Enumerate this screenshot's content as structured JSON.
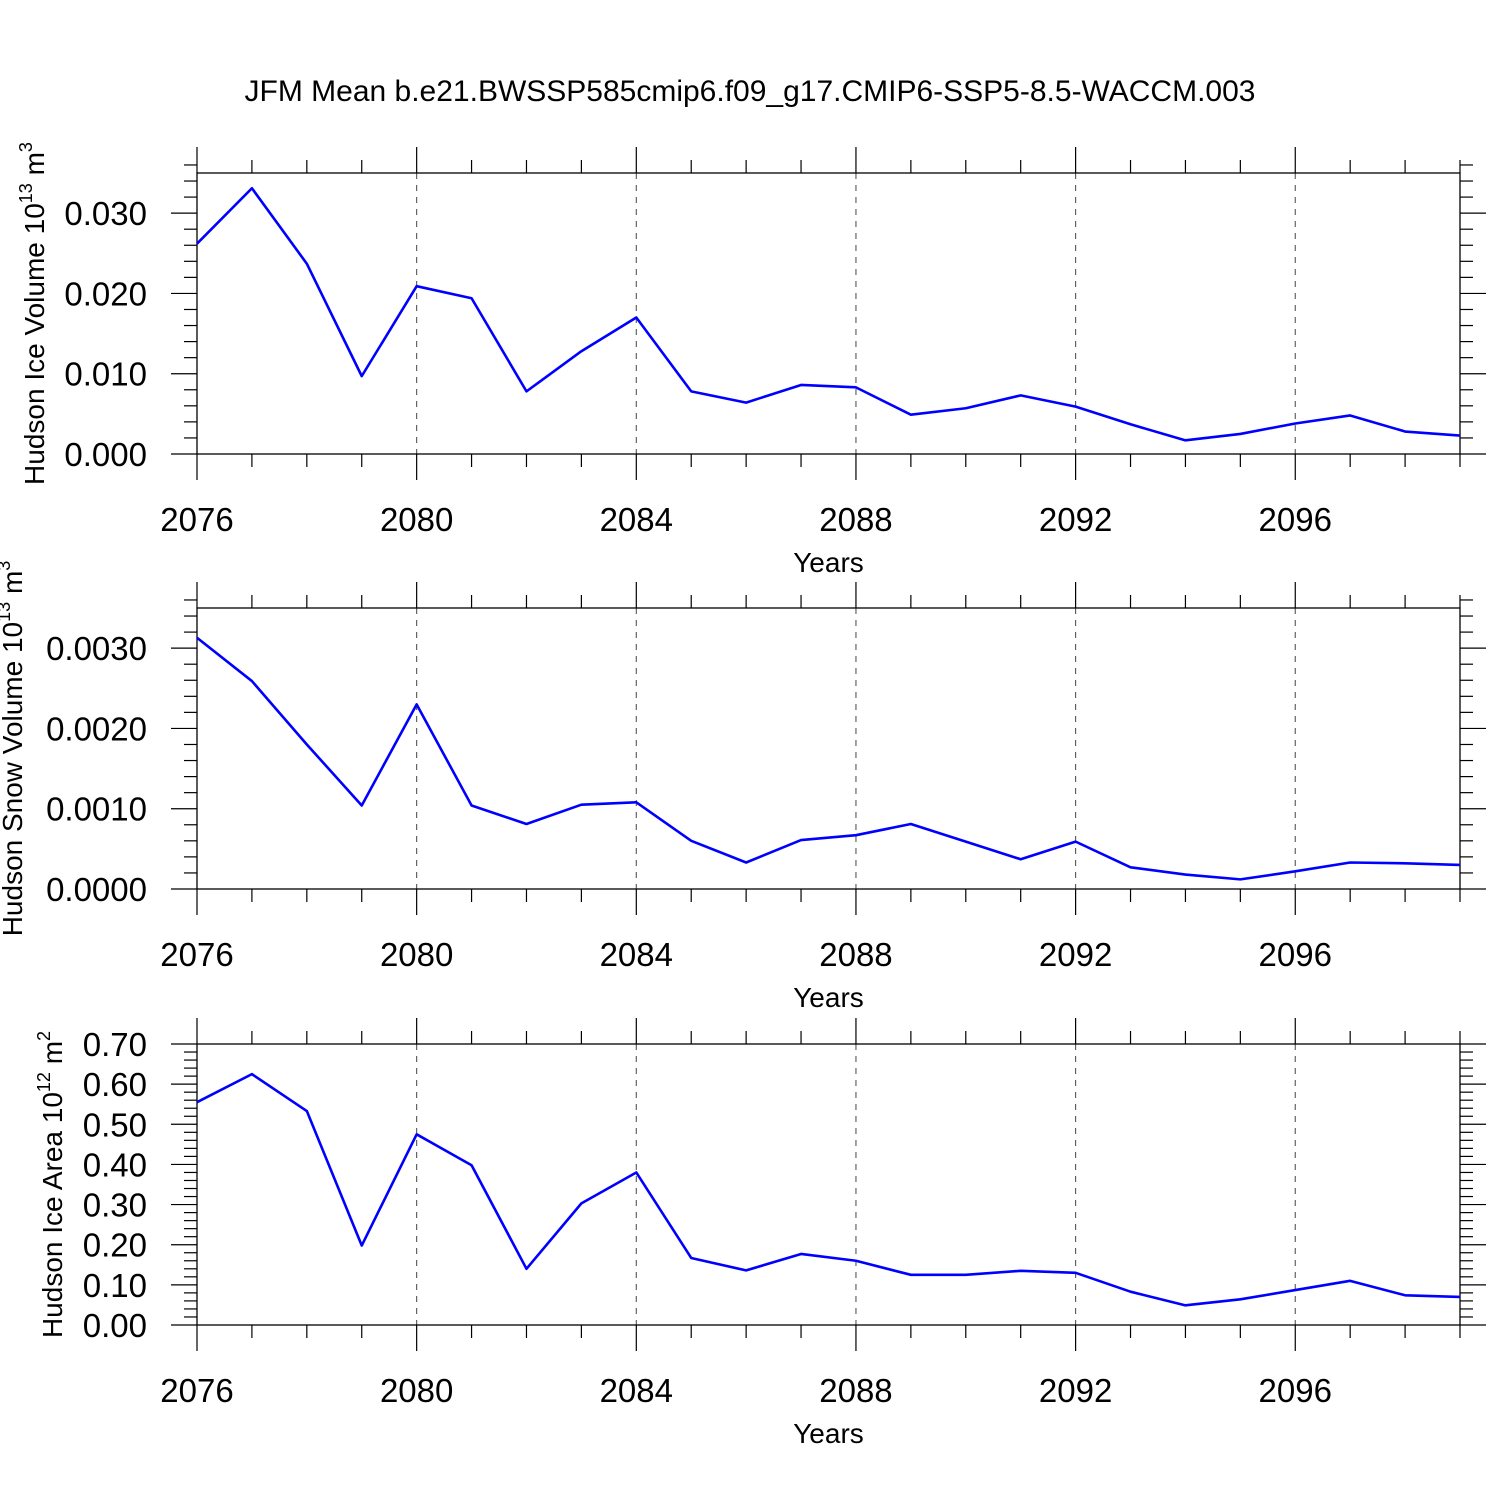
{
  "figure": {
    "title": "JFM Mean b.e21.BWSSP585cmip6.f09_g17.CMIP6-SSP5-8.5-WACCM.003"
  },
  "colors": {
    "line": "#0000ff",
    "frame": "#000000",
    "grid": "#555555"
  },
  "chart_data": [
    {
      "type": "line",
      "xlabel": "Years",
      "ylabel": "Hudson Ice Volume 10",
      "ylabel_exp": "13",
      "ylabel_unit": " m",
      "ylabel_unit_exp": "3",
      "xlim": [
        2076,
        2099
      ],
      "ylim": [
        0,
        0.035
      ],
      "x_ticks": [
        2076,
        2080,
        2084,
        2088,
        2092,
        2096
      ],
      "x_tick_labels": [
        "2076",
        "2080",
        "2084",
        "2088",
        "2092",
        "2096"
      ],
      "x_minor_step": 1,
      "y_ticks": [
        0,
        0.01,
        0.02,
        0.03
      ],
      "y_tick_labels": [
        "0.000",
        "0.010",
        "0.020",
        "0.030"
      ],
      "y_minor_step": 0.002,
      "grid": "vertical dashed at major x ticks",
      "x": [
        2076,
        2077,
        2078,
        2079,
        2080,
        2081,
        2082,
        2083,
        2084,
        2085,
        2086,
        2087,
        2088,
        2089,
        2090,
        2091,
        2092,
        2093,
        2094,
        2095,
        2096,
        2097,
        2098,
        2099
      ],
      "series": [
        {
          "values": [
            0.0262,
            0.0331,
            0.0237,
            0.0097,
            0.0209,
            0.0194,
            0.0078,
            0.0128,
            0.017,
            0.0078,
            0.0064,
            0.0086,
            0.0083,
            0.0049,
            0.0057,
            0.0073,
            0.0059,
            0.0037,
            0.0017,
            0.0025,
            0.0038,
            0.0048,
            0.0028,
            0.0023
          ]
        }
      ]
    },
    {
      "type": "line",
      "xlabel": "Years",
      "ylabel": "Hudson Snow Volume 10",
      "ylabel_exp": "13",
      "ylabel_unit": " m",
      "ylabel_unit_exp": "3",
      "xlim": [
        2076,
        2099
      ],
      "ylim": [
        0,
        0.0035
      ],
      "x_ticks": [
        2076,
        2080,
        2084,
        2088,
        2092,
        2096
      ],
      "x_tick_labels": [
        "2076",
        "2080",
        "2084",
        "2088",
        "2092",
        "2096"
      ],
      "x_minor_step": 1,
      "y_ticks": [
        0,
        0.001,
        0.002,
        0.003
      ],
      "y_tick_labels": [
        "0.0000",
        "0.0010",
        "0.0020",
        "0.0030"
      ],
      "y_minor_step": 0.0002,
      "grid": "vertical dashed at major x ticks",
      "x": [
        2076,
        2077,
        2078,
        2079,
        2080,
        2081,
        2082,
        2083,
        2084,
        2085,
        2086,
        2087,
        2088,
        2089,
        2090,
        2091,
        2092,
        2093,
        2094,
        2095,
        2096,
        2097,
        2098,
        2099
      ],
      "series": [
        {
          "values": [
            0.00313,
            0.00259,
            0.0018,
            0.00104,
            0.0023,
            0.00104,
            0.00081,
            0.00105,
            0.00108,
            0.0006,
            0.00033,
            0.00061,
            0.00067,
            0.00081,
            0.00059,
            0.00037,
            0.00059,
            0.00027,
            0.00018,
            0.00012,
            0.00022,
            0.00033,
            0.00032,
            0.0003
          ]
        }
      ]
    },
    {
      "type": "line",
      "xlabel": "Years",
      "ylabel": "Hudson Ice Area 10",
      "ylabel_exp": "12",
      "ylabel_unit": " m",
      "ylabel_unit_exp": "2",
      "xlim": [
        2076,
        2099
      ],
      "ylim": [
        0,
        0.7
      ],
      "x_ticks": [
        2076,
        2080,
        2084,
        2088,
        2092,
        2096
      ],
      "x_tick_labels": [
        "2076",
        "2080",
        "2084",
        "2088",
        "2092",
        "2096"
      ],
      "x_minor_step": 1,
      "y_ticks": [
        0,
        0.1,
        0.2,
        0.3,
        0.4,
        0.5,
        0.6,
        0.7
      ],
      "y_tick_labels": [
        "0.00",
        "0.10",
        "0.20",
        "0.30",
        "0.40",
        "0.50",
        "0.60",
        "0.70"
      ],
      "y_minor_step": 0.02,
      "grid": "vertical dashed at major x ticks",
      "x": [
        2076,
        2077,
        2078,
        2079,
        2080,
        2081,
        2082,
        2083,
        2084,
        2085,
        2086,
        2087,
        2088,
        2089,
        2090,
        2091,
        2092,
        2093,
        2094,
        2095,
        2096,
        2097,
        2098,
        2099
      ],
      "series": [
        {
          "values": [
            0.555,
            0.625,
            0.533,
            0.198,
            0.475,
            0.398,
            0.14,
            0.303,
            0.38,
            0.167,
            0.136,
            0.177,
            0.16,
            0.125,
            0.125,
            0.135,
            0.13,
            0.083,
            0.049,
            0.064,
            0.087,
            0.11,
            0.074,
            0.07
          ]
        }
      ]
    }
  ]
}
